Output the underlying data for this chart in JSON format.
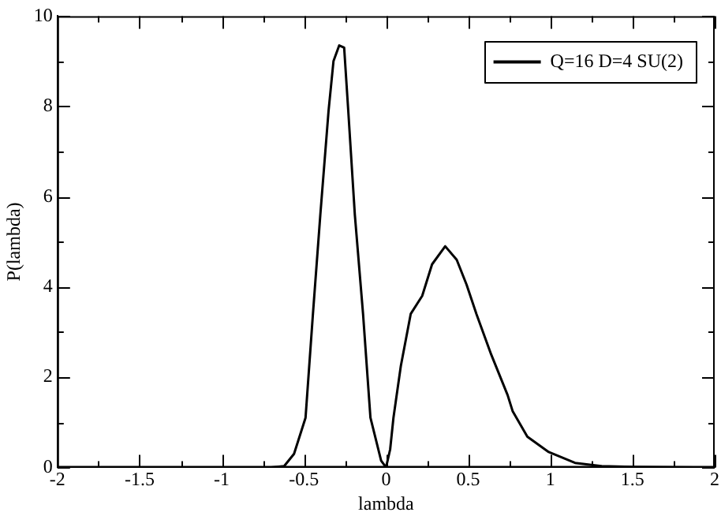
{
  "chart_data": {
    "type": "line",
    "xlabel": "lambda",
    "ylabel": "P(lambda)",
    "xlim": [
      -2,
      2
    ],
    "ylim": [
      0,
      10
    ],
    "xticks": [
      -2,
      {
        "value": -1.75,
        "label": null
      },
      -1.5,
      {
        "value": -1.25,
        "label": null
      },
      -1,
      {
        "value": -0.75,
        "label": null
      },
      -0.5,
      {
        "value": -0.25,
        "label": null
      },
      0,
      {
        "value": 0.25,
        "label": null
      },
      0.5,
      {
        "value": 0.75,
        "label": null
      },
      1,
      {
        "value": 1.25,
        "label": null
      },
      1.5,
      {
        "value": 1.75,
        "label": null
      },
      2
    ],
    "yticks": [
      0,
      {
        "value": 1,
        "label": null
      },
      2,
      {
        "value": 3,
        "label": null
      },
      4,
      {
        "value": 5,
        "label": null
      },
      6,
      {
        "value": 7,
        "label": null
      },
      8,
      {
        "value": 9,
        "label": null
      },
      10
    ],
    "grid": false,
    "legend": "top right",
    "marker": "none",
    "line_style": "solid",
    "series": [
      {
        "name": "Q=16 D=4 SU(2)",
        "color": "#000000",
        "x": [
          -1.88,
          -1,
          -0.7,
          -0.62,
          -0.56,
          -0.49,
          -0.445,
          -0.4,
          -0.35,
          -0.32,
          -0.285,
          -0.255,
          -0.23,
          -0.19,
          -0.14,
          -0.095,
          -0.03,
          0,
          0.025,
          0.045,
          0.09,
          0.15,
          0.22,
          0.28,
          0.36,
          0.43,
          0.49,
          0.55,
          0.64,
          0.74,
          0.77,
          0.86,
          0.99,
          1.15,
          1.31,
          1.5,
          1.88
        ],
        "values": [
          0,
          0,
          0,
          0.03,
          0.3,
          1.1,
          3.4,
          5.6,
          7.9,
          9.0,
          9.35,
          9.3,
          7.9,
          5.6,
          3.4,
          1.1,
          0.15,
          0,
          0.4,
          1.1,
          2.25,
          3.4,
          3.8,
          4.5,
          4.9,
          4.6,
          4.05,
          3.4,
          2.5,
          1.6,
          1.25,
          0.68,
          0.34,
          0.1,
          0.03,
          0.01,
          0
        ]
      }
    ]
  }
}
